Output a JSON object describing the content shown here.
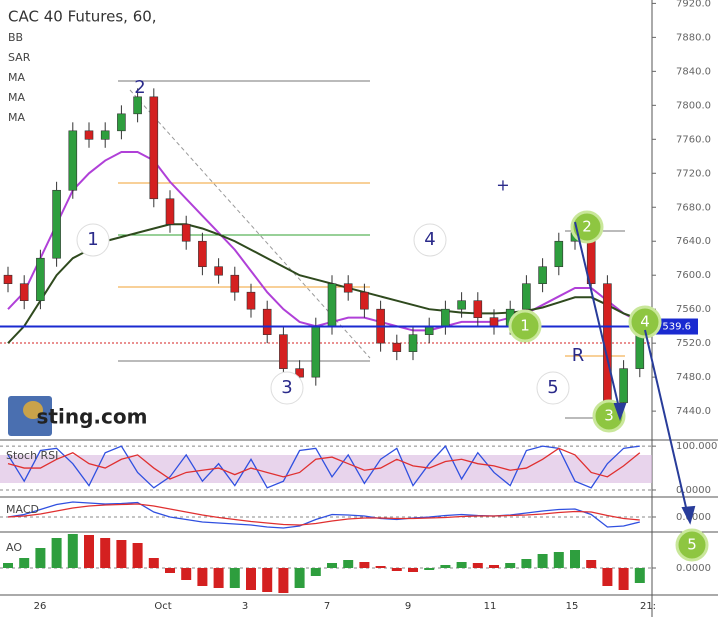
{
  "chart_data": [
    {
      "type": "candlestick",
      "title": "CAC 40 Futures, 60,",
      "indicators": [
        "BB",
        "SAR",
        "MA",
        "MA",
        "MA"
      ],
      "watermark": "sting.com",
      "annotations": [
        "1",
        "2",
        "3",
        "4",
        "5",
        "R",
        "1",
        "2",
        "3",
        "4",
        "5",
        "+"
      ],
      "xtick_labels": [
        "26",
        "Oct",
        "3",
        "7",
        "9",
        "11",
        "15",
        "21:"
      ],
      "open": [
        7600,
        7590,
        7570,
        7620,
        7700,
        7770,
        7760,
        7770,
        7790,
        7810,
        7690,
        7660,
        7640,
        7610,
        7600,
        7580,
        7560,
        7530,
        7490,
        7480,
        7540,
        7590,
        7580,
        7560,
        7520,
        7510,
        7530,
        7540,
        7560,
        7570,
        7550,
        7540,
        7560,
        7590,
        7610,
        7640,
        7650,
        7590,
        7450,
        7490
      ],
      "high": [
        7610,
        7600,
        7630,
        7710,
        7780,
        7780,
        7780,
        7800,
        7820,
        7820,
        7700,
        7670,
        7650,
        7620,
        7610,
        7590,
        7570,
        7540,
        7500,
        7550,
        7600,
        7600,
        7590,
        7570,
        7530,
        7540,
        7550,
        7570,
        7580,
        7580,
        7560,
        7570,
        7600,
        7620,
        7650,
        7660,
        7660,
        7600,
        7500,
        7545
      ],
      "low": [
        7580,
        7560,
        7560,
        7610,
        7690,
        7750,
        7750,
        7760,
        7780,
        7680,
        7650,
        7630,
        7600,
        7590,
        7570,
        7550,
        7520,
        7480,
        7470,
        7470,
        7530,
        7570,
        7550,
        7510,
        7500,
        7500,
        7520,
        7530,
        7550,
        7540,
        7530,
        7530,
        7550,
        7580,
        7600,
        7630,
        7580,
        7440,
        7440,
        7480
      ],
      "close": [
        7590,
        7570,
        7620,
        7700,
        7770,
        7760,
        7770,
        7790,
        7810,
        7690,
        7660,
        7640,
        7610,
        7600,
        7580,
        7560,
        7530,
        7490,
        7480,
        7540,
        7590,
        7580,
        7560,
        7520,
        7510,
        7530,
        7540,
        7560,
        7570,
        7550,
        7540,
        7560,
        7590,
        7610,
        7640,
        7650,
        7590,
        7450,
        7490,
        7535
      ],
      "ma_series": [
        {
          "color": "#b040d8",
          "values": [
            7560,
            7580,
            7620,
            7660,
            7700,
            7720,
            7735,
            7745,
            7745,
            7735,
            7710,
            7690,
            7670,
            7650,
            7630,
            7605,
            7580,
            7560,
            7545,
            7540,
            7545,
            7550,
            7550,
            7545,
            7540,
            7535,
            7535,
            7540,
            7545,
            7545,
            7545,
            7550,
            7555,
            7565,
            7575,
            7585,
            7585,
            7570,
            7555,
            7545
          ]
        },
        {
          "color": "#2f4a1e",
          "values": [
            7520,
            7540,
            7570,
            7600,
            7620,
            7630,
            7640,
            7645,
            7650,
            7655,
            7660,
            7660,
            7655,
            7648,
            7640,
            7630,
            7620,
            7610,
            7600,
            7595,
            7590,
            7585,
            7580,
            7575,
            7570,
            7565,
            7560,
            7558,
            7556,
            7555,
            7555,
            7556,
            7558,
            7562,
            7568,
            7574,
            7574,
            7565,
            7555,
            7548
          ]
        }
      ],
      "up_color": "#2e9e3e",
      "down_color": "#d42020",
      "last_price": {
        "value": 7539.6,
        "label": "7539.6"
      },
      "ylim": [
        7406,
        7924
      ],
      "yticks": [
        {
          "value": 7440,
          "label": "7440.0"
        },
        {
          "value": 7480,
          "label": "7480.0"
        },
        {
          "value": 7520,
          "label": "7520.0"
        },
        {
          "value": 7560,
          "label": "7560.0"
        },
        {
          "value": 7600,
          "label": "7600.0"
        },
        {
          "value": 7640,
          "label": "7640.0"
        },
        {
          "value": 7680,
          "label": "7680.0"
        },
        {
          "value": 7720,
          "label": "7720.0"
        },
        {
          "value": 7760,
          "label": "7760.0"
        },
        {
          "value": 7800,
          "label": "7800.0"
        },
        {
          "value": 7840,
          "label": "7840.0"
        },
        {
          "value": 7880,
          "label": "7880.0"
        },
        {
          "value": 7920,
          "label": "7920.0"
        }
      ]
    },
    {
      "type": "line",
      "title": "Stoch RSI",
      "series": [
        {
          "color": "#3050e0",
          "values": [
            80,
            20,
            90,
            95,
            60,
            10,
            85,
            100,
            40,
            5,
            30,
            80,
            20,
            60,
            10,
            70,
            5,
            20,
            90,
            95,
            30,
            80,
            15,
            70,
            95,
            10,
            60,
            100,
            25,
            85,
            40,
            10,
            90,
            100,
            95,
            20,
            5,
            60,
            95,
            100
          ]
        },
        {
          "color": "#e03030",
          "values": [
            60,
            50,
            50,
            70,
            85,
            60,
            50,
            70,
            80,
            50,
            25,
            40,
            45,
            50,
            35,
            50,
            40,
            30,
            40,
            70,
            75,
            60,
            45,
            50,
            70,
            55,
            50,
            65,
            70,
            60,
            55,
            45,
            50,
            70,
            95,
            80,
            40,
            30,
            55,
            85
          ]
        }
      ],
      "ylim": [
        -16,
        114
      ],
      "yticks": [
        {
          "value": 0,
          "label": "0.0000"
        },
        {
          "value": 100,
          "label": "100.0000"
        }
      ]
    },
    {
      "type": "line",
      "title": "MACD",
      "series": [
        {
          "color": "#3050e0",
          "values": [
            0,
            5,
            15,
            25,
            30,
            28,
            26,
            27,
            29,
            10,
            0,
            -5,
            -10,
            -12,
            -14,
            -16,
            -20,
            -22,
            -18,
            -5,
            5,
            4,
            2,
            -3,
            -5,
            -2,
            0,
            3,
            5,
            3,
            2,
            4,
            8,
            12,
            15,
            16,
            5,
            -20,
            -18,
            -10
          ]
        },
        {
          "color": "#e03030",
          "values": [
            0,
            2,
            6,
            12,
            18,
            22,
            24,
            25,
            26,
            22,
            16,
            10,
            4,
            -1,
            -5,
            -9,
            -12,
            -15,
            -16,
            -13,
            -8,
            -4,
            -2,
            -2,
            -3,
            -3,
            -2,
            -1,
            1,
            2,
            2,
            3,
            4,
            6,
            9,
            11,
            10,
            3,
            -3,
            -6
          ]
        }
      ],
      "ylim": [
        -30,
        40
      ],
      "yticks": [
        {
          "value": 0,
          "label": "0.0000"
        }
      ]
    },
    {
      "type": "bar",
      "title": "AO",
      "values": [
        5,
        10,
        20,
        30,
        34,
        33,
        30,
        28,
        25,
        10,
        -5,
        -12,
        -18,
        -20,
        -20,
        -22,
        -24,
        -25,
        -20,
        -8,
        5,
        8,
        6,
        2,
        -3,
        -4,
        -2,
        3,
        6,
        5,
        3,
        5,
        9,
        14,
        16,
        18,
        8,
        -18,
        -22,
        -15
      ],
      "up_color": "#2e9e3e",
      "down_color": "#d42020",
      "ylim": [
        -27,
        36
      ],
      "yticks": [
        {
          "value": 0,
          "label": "0.0000"
        }
      ]
    }
  ]
}
